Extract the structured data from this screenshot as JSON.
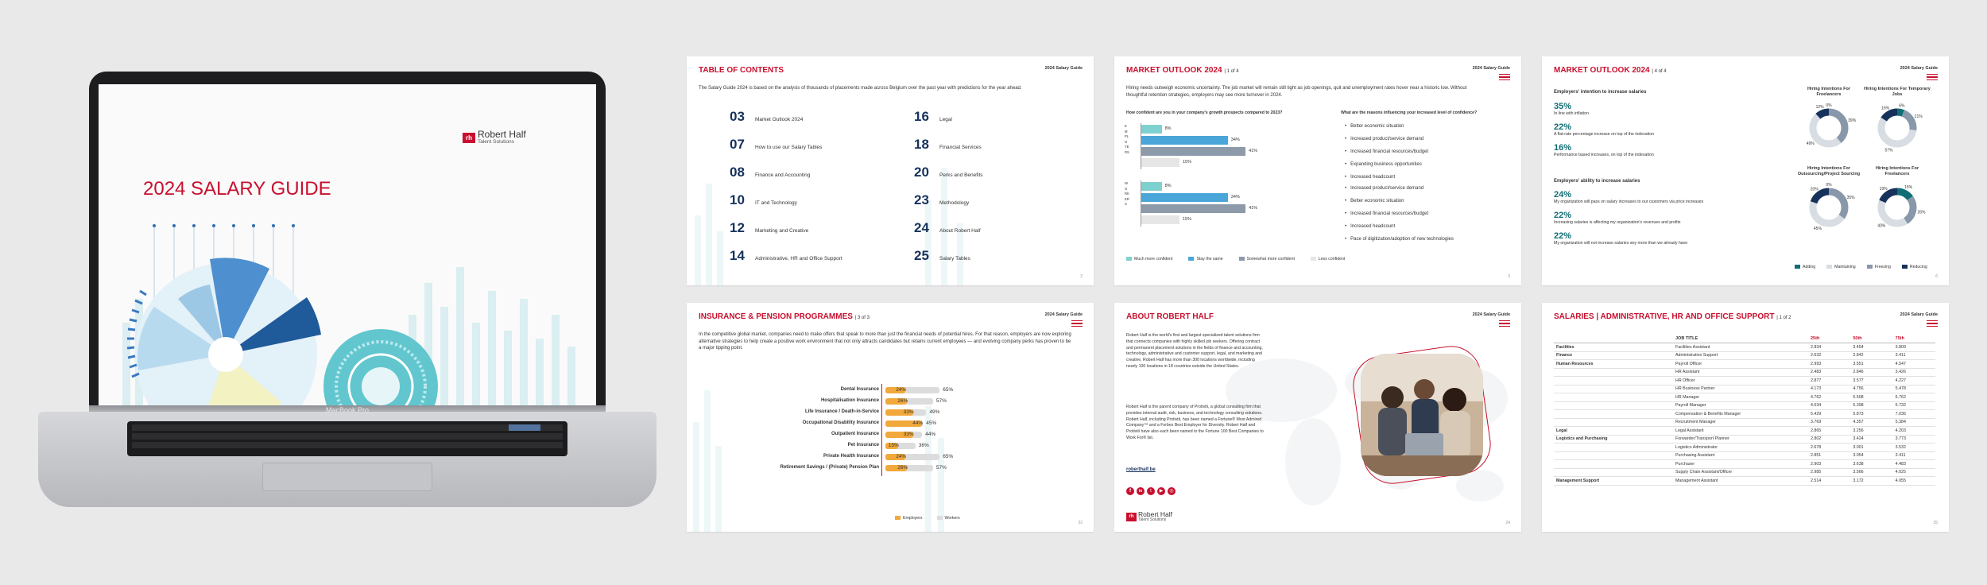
{
  "cover": {
    "brand": "Robert Half",
    "brand_sub": "Talent Solutions",
    "title": "2024 SALARY GUIDE",
    "device_label": "MacBook Pro"
  },
  "common": {
    "guide_label": "2024 Salary Guide"
  },
  "toc": {
    "title": "TABLE OF CONTENTS",
    "intro": "The Salary Guide 2024 is based on the analysis of thousands of placements made across Belgium over the past year with predictions for the year ahead.",
    "items": [
      {
        "num": "03",
        "label": "Market Outlook 2024"
      },
      {
        "num": "07",
        "label": "How to use our Salary Tables"
      },
      {
        "num": "08",
        "label": "Finance and Accounting"
      },
      {
        "num": "10",
        "label": "IT and Technology"
      },
      {
        "num": "12",
        "label": "Marketing and Creative"
      },
      {
        "num": "14",
        "label": "Administrative, HR and Office Support"
      },
      {
        "num": "16",
        "label": "Legal"
      },
      {
        "num": "18",
        "label": "Financial Services"
      },
      {
        "num": "20",
        "label": "Perks and Benefits"
      },
      {
        "num": "23",
        "label": "Methodology"
      },
      {
        "num": "24",
        "label": "About Robert Half"
      },
      {
        "num": "25",
        "label": "Salary Tables"
      }
    ],
    "page": "2"
  },
  "mo1": {
    "title": "MARKET OUTLOOK 2024",
    "sub": "1 of 4",
    "intro": "Hiring needs outweigh economic uncertainty. The job market will remain still tight as job openings, quit and unemployment rates hover near a historic low. Without thoughtful retention strategies, employers may see more turnover in 2024.",
    "q1": "How confident are you in your company's growth prospects compared to 2023?",
    "q2": "What are the reasons influencing your increased level of confidence?",
    "group1_label": "EMPLOYERS",
    "group2_label": "WORKERS",
    "group1_values": [
      "8%",
      "34%",
      "41%",
      "15%"
    ],
    "group2_values": [
      "8%",
      "34%",
      "41%",
      "15%"
    ],
    "reasons1": [
      "Better economic situation",
      "Increased product/service demand",
      "Increased financial resources/budget",
      "Expanding business opportunities",
      "Increased headcount"
    ],
    "reasons2": [
      "Increased product/service demand",
      "Better economic situation",
      "Increased financial resources/budget",
      "Increased headcount",
      "Pace of digitization/adoption of new technologies"
    ],
    "legend": [
      "Much more confident",
      "Stay the same",
      "Somewhat more confident",
      "Less confident"
    ],
    "page": "3"
  },
  "mo4": {
    "title": "MARKET OUTLOOK 2024",
    "sub": "4 of 4",
    "h1": "Employers' intention to increase salaries",
    "stats1": [
      {
        "pct": "35%",
        "desc": "In line with inflation"
      },
      {
        "pct": "22%",
        "desc": "A flat-rate percentage increase on top of the indexation"
      },
      {
        "pct": "16%",
        "desc": "Performance based increases, on top of the indexation"
      }
    ],
    "h2": "Employers' ability to increase salaries",
    "stats2": [
      {
        "pct": "24%",
        "desc": "My organization will pass on salary increases to our customers via price increases"
      },
      {
        "pct": "22%",
        "desc": "Increasing salaries is affecting my organization's revenues and profits"
      },
      {
        "pct": "22%",
        "desc": "My organization will not increase salaries any more than we already have"
      }
    ],
    "donuts": [
      {
        "title": "Hiring Intentions For Freelancers",
        "labels": [
          "0%",
          "39%",
          "49%",
          "12%"
        ]
      },
      {
        "title": "Hiring Intentions For Temporary Jobs",
        "labels": [
          "6%",
          "21%",
          "57%",
          "16%"
        ]
      },
      {
        "title": "Hiring Intentions For Outsourcing/Project Sourcing",
        "labels": [
          "0%",
          "35%",
          "45%",
          "20%"
        ]
      },
      {
        "title": "Hiring Intentions For Freelancers",
        "labels": [
          "15%",
          "26%",
          "40%",
          "19%"
        ]
      }
    ],
    "legend": [
      "Adding",
      "Maintaining",
      "Freezing",
      "Reducing"
    ],
    "colors": {
      "adding": "#0f6e75",
      "maintaining": "#d7dde3",
      "freezing": "#8898aa",
      "reducing": "#16325c"
    },
    "page": "6"
  },
  "ins": {
    "title": "INSURANCE & PENSION PROGRAMMES",
    "sub": "3 of 3",
    "intro": "In the competitive global market, companies need to make offers that speak to more than just the financial needs of potential hires. For that reason, employers are now exploring alternative strategies to help create a positive work environment that not only attracts candidates but retains current employees — and evolving company perks has proven to be a major tipping point.",
    "rows": [
      {
        "name": "Dental Insurance",
        "emp": 24,
        "wrk": 65
      },
      {
        "name": "Hospitalisation Insurance",
        "emp": 26,
        "wrk": 57
      },
      {
        "name": "Life Insurance / Death-in-Service",
        "emp": 33,
        "wrk": 49
      },
      {
        "name": "Occupational Disability Insurance",
        "emp": 44,
        "wrk": 45
      },
      {
        "name": "Outpatient Insurance",
        "emp": 33,
        "wrk": 44
      },
      {
        "name": "Pet Insurance",
        "emp": 15,
        "wrk": 36
      },
      {
        "name": "Private Health Insurance",
        "emp": 24,
        "wrk": 65
      },
      {
        "name": "Retirement Savings / (Private) Pension Plan",
        "emp": 26,
        "wrk": 57
      }
    ],
    "legend": [
      "Employers",
      "Workers"
    ],
    "page": "22"
  },
  "about": {
    "title": "ABOUT ROBERT HALF",
    "p1": "Robert Half is the world's first and largest specialized talent solutions firm that connects companies with highly skilled job seekers. Offering contract and permanent placement solutions in the fields of finance and accounting, technology, administrative and customer support, legal, and marketing and creative, Robert Half has more than 300 locations worldwide, including nearly 100 locations in 18 countries outside the United States.",
    "p2": "Robert Half is the parent company of Protiviti, a global consulting firm that provides internal audit, risk, business, and technology consulting solutions. Robert Half, including Protiviti, has been named a Fortune® Most Admired Company™ and a Forbes Best Employer for Diversity. Robert Half and Protiviti have also each been named to the Fortune 100 Best Companies to Work For® list.",
    "link": "roberthalf.be",
    "brand": "Robert Half",
    "brand_sub": "Talent Solutions",
    "page": "24"
  },
  "sal": {
    "title": "SALARIES | ADMINISTRATIVE, HR AND OFFICE SUPPORT",
    "sub": "1 of 2",
    "headers": [
      "",
      "JOB TITLE",
      "25th",
      "50th",
      "75th"
    ],
    "rows": [
      {
        "cat": "Facilities",
        "job": "Facilities Assistant",
        "p25": "2.834",
        "p50": "3.454",
        "p75": "3.809"
      },
      {
        "cat": "Finance",
        "job": "Administrative Support",
        "p25": "2.632",
        "p50": "2.842",
        "p75": "3.411"
      },
      {
        "cat": "Human Resources",
        "job": "Payroll Officer",
        "p25": "2.993",
        "p50": "3.551",
        "p75": "4.547"
      },
      {
        "cat": "",
        "job": "HR Assistant",
        "p25": "2.483",
        "p50": "2.846",
        "p75": "3.426"
      },
      {
        "cat": "",
        "job": "HR Officer",
        "p25": "2.877",
        "p50": "3.577",
        "p75": "4.227"
      },
      {
        "cat": "",
        "job": "HR Business Partner",
        "p25": "4.173",
        "p50": "4.756",
        "p75": "5.478"
      },
      {
        "cat": "",
        "job": "HR Manager",
        "p25": "4.762",
        "p50": "5.508",
        "p75": "6.762"
      },
      {
        "cat": "",
        "job": "Payroll Manager",
        "p25": "4.634",
        "p50": "5.398",
        "p75": "6.732"
      },
      {
        "cat": "",
        "job": "Compensation & Benefits Manager",
        "p25": "5.429",
        "p50": "5.873",
        "p75": "7.036"
      },
      {
        "cat": "",
        "job": "Recruitment Manager",
        "p25": "3.769",
        "p50": "4.357",
        "p75": "5.384"
      },
      {
        "cat": "Legal",
        "job": "Legal Assistant",
        "p25": "2.865",
        "p50": "3.256",
        "p75": "4.203"
      },
      {
        "cat": "Logistics and Purchasing",
        "job": "Forwarder/Transport Planner",
        "p25": "2.802",
        "p50": "3.424",
        "p75": "3.773"
      },
      {
        "cat": "",
        "job": "Logistics Administrator",
        "p25": "2.678",
        "p50": "3.001",
        "p75": "3.532"
      },
      {
        "cat": "",
        "job": "Purchasing Assistant",
        "p25": "2.851",
        "p50": "3.054",
        "p75": "3.411"
      },
      {
        "cat": "",
        "job": "Purchaser",
        "p25": "2.903",
        "p50": "3.638",
        "p75": "4.483"
      },
      {
        "cat": "",
        "job": "Supply Chain Assistant/Officer",
        "p25": "2.985",
        "p50": "3.566",
        "p75": "4.025"
      },
      {
        "cat": "Management Support",
        "job": "Management Assistant",
        "p25": "2.514",
        "p50": "3.172",
        "p75": "4.055"
      }
    ],
    "page": "25"
  }
}
